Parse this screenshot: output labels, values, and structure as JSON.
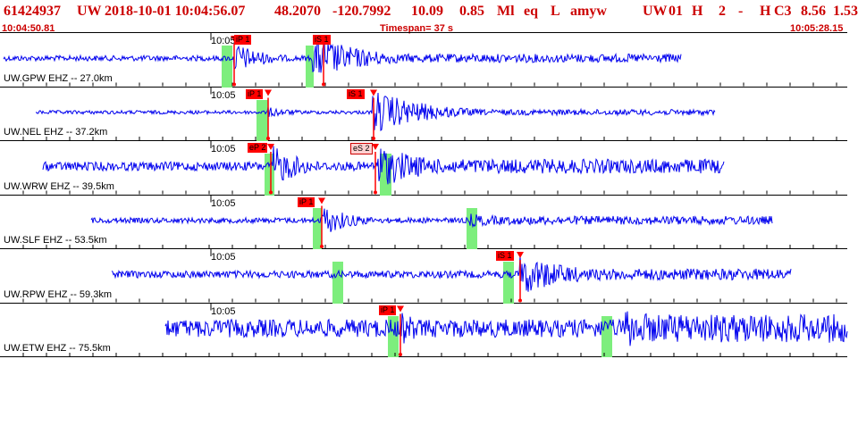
{
  "header": {
    "event_id": "61424937",
    "network": "UW",
    "datetime": "2018-10-01 10:04:56.07",
    "lat": "48.2070",
    "lon": "-120.7992",
    "depth": "10.09",
    "magnitude": "0.85",
    "mag_type": "Ml",
    "event_type": "eq",
    "flag": "L",
    "author": "amyw",
    "origin_net": "UW",
    "version": "01",
    "quality": "H",
    "count": "2",
    "dash": "-",
    "solution": "H",
    "class": "C3",
    "val1": "8.56",
    "val2": "1.53"
  },
  "timebar": {
    "start": "10:04:50.81",
    "timespan": "Timespan=  37 s",
    "end": "10:05:28.15"
  },
  "colors": {
    "header_text": "#cc0000",
    "trace": "#0000ee",
    "pick": "#ff0000",
    "window": "#7dee7d"
  },
  "traces": [
    {
      "station": "UW.GPW EHZ -- 27.0km",
      "minute_label": "10:05",
      "picks": [
        {
          "label": "iP 1"
        },
        {
          "label": "iS 1"
        }
      ]
    },
    {
      "station": "UW.NEL EHZ -- 37.2km",
      "minute_label": "10:05",
      "picks": [
        {
          "label": "iP 1"
        },
        {
          "label": "iS 1"
        }
      ]
    },
    {
      "station": "UW.WRW EHZ -- 39.5km",
      "minute_label": "10:05",
      "picks": [
        {
          "label": "eP 2"
        },
        {
          "label": "eS 2"
        }
      ]
    },
    {
      "station": "UW.SLF EHZ -- 53.5km",
      "minute_label": "10:05",
      "picks": [
        {
          "label": "iP 1"
        }
      ]
    },
    {
      "station": "UW.RPW EHZ -- 59.3km",
      "minute_label": "10:05",
      "picks": [
        {
          "label": "iS 1"
        }
      ]
    },
    {
      "station": "UW.ETW EHZ -- 75.5km",
      "minute_label": "10:05",
      "picks": [
        {
          "label": "iP 1"
        }
      ]
    }
  ]
}
